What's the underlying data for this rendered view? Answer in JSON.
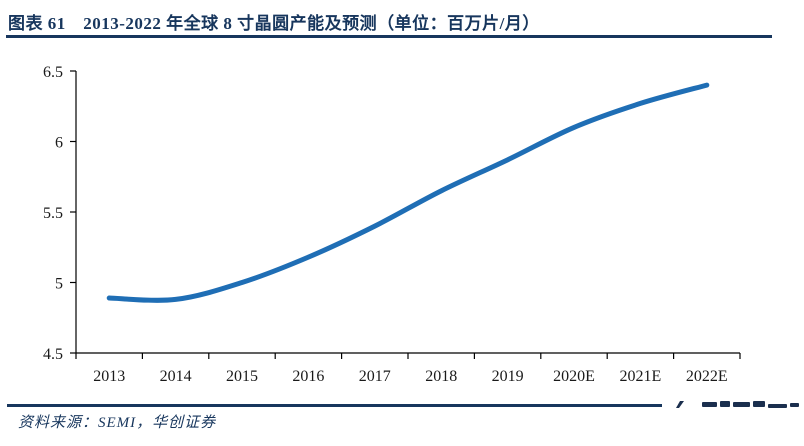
{
  "header": {
    "title": "图表 61　2013-2022 年全球 8 寸晶圆产能及预测（单位：百万片/月）"
  },
  "footer": {
    "source": "资料来源：SEMI，华创证券"
  },
  "colors": {
    "navy": "#17365D",
    "line": "#1F6EB5",
    "axis": "#000000",
    "tick_label": "#1a1a1a"
  },
  "chart_data": {
    "type": "line",
    "title": "图表 61　2013-2022 年全球 8 寸晶圆产能及预测（单位：百万片/月）",
    "unit": "百万片/月",
    "categories": [
      "2013",
      "2014",
      "2015",
      "2016",
      "2017",
      "2018",
      "2019",
      "2020E",
      "2021E",
      "2022E"
    ],
    "values": [
      4.89,
      4.88,
      5.0,
      5.18,
      5.4,
      5.65,
      5.87,
      6.1,
      6.27,
      6.4
    ],
    "xlabel": "",
    "ylabel": "",
    "ylim": [
      4.5,
      6.5
    ],
    "yticks": [
      4.5,
      5,
      5.5,
      6,
      6.5
    ],
    "grid": false,
    "legend": "none",
    "line_color": "#1F6EB5",
    "smooth": true
  }
}
